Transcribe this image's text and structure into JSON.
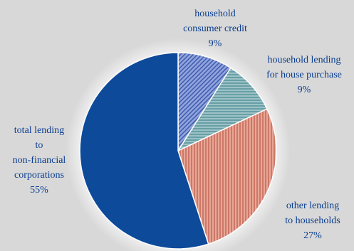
{
  "chart_data": {
    "type": "pie",
    "title": "",
    "start_angle_deg": 0,
    "direction": "clockwise",
    "slices": [
      {
        "label_lines": [
          "household",
          "consumer credit"
        ],
        "value": 9,
        "value_text": "9%",
        "color": "#6f86c9",
        "hatch": "diagonal"
      },
      {
        "label_lines": [
          "household lending",
          "for house purchase"
        ],
        "value": 9,
        "value_text": "9%",
        "color": "#6fa7ad",
        "hatch": "horizontal"
      },
      {
        "label_lines": [
          "other lending",
          "to households"
        ],
        "value": 27,
        "value_text": "27%",
        "color": "#d8806e",
        "hatch": "vertical"
      },
      {
        "label_lines": [
          "total lending",
          "to",
          "non-financial",
          "corporations"
        ],
        "value": 55,
        "value_text": "55%",
        "color": "#0d4a9a",
        "hatch": "none"
      }
    ]
  }
}
